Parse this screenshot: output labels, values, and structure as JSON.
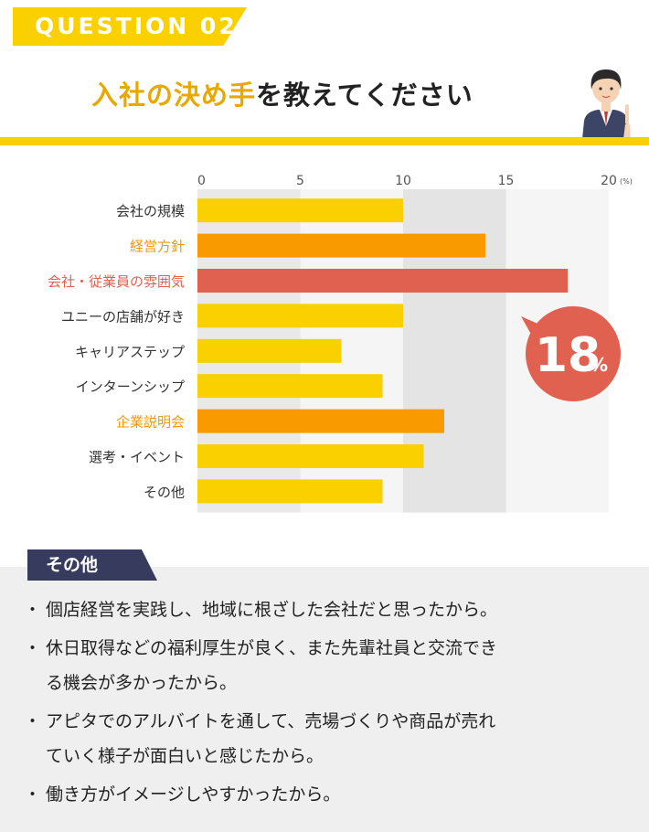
{
  "header": {
    "question_label": "QUESTION 02",
    "title_highlight": "入社の決め手",
    "title_rest": "を教えてください"
  },
  "chart_data": {
    "type": "bar",
    "orientation": "horizontal",
    "categories": [
      "会社の規模",
      "経営方針",
      "会社・従業員の雰囲気",
      "ユニーの店舗が好き",
      "キャリアステップ",
      "インターンシップ",
      "企業説明会",
      "選考・イベント",
      "その他"
    ],
    "values": [
      10,
      14,
      18,
      10,
      7,
      9,
      12,
      11,
      9
    ],
    "bar_colors": [
      "#fad000",
      "#f99a00",
      "#e06150",
      "#fad000",
      "#fad000",
      "#fad000",
      "#f99a00",
      "#fad000",
      "#fad000"
    ],
    "label_colors": [
      "#333333",
      "#f39800",
      "#e06150",
      "#333333",
      "#333333",
      "#333333",
      "#f39800",
      "#333333",
      "#333333"
    ],
    "x_ticks": [
      "0",
      "5",
      "10",
      "15",
      "20"
    ],
    "x_unit": "(%)",
    "xlim": [
      0,
      20
    ],
    "highlight": {
      "index": 2,
      "value": "18",
      "unit": "%",
      "color": "#e06150"
    }
  },
  "others": {
    "heading": "その他",
    "items": [
      {
        "lines": [
          "個店経営を実践し、地域に根ざした会社だと思ったから。"
        ]
      },
      {
        "lines": [
          "休日取得などの福利厚生が良く、また先輩社員と交流でき",
          "る機会が多かったから。"
        ]
      },
      {
        "lines": [
          "アピタでのアルバイトを通して、売場づくりや商品が売れ",
          "ていく様子が面白いと感じたから。"
        ]
      },
      {
        "lines": [
          "働き方がイメージしやすかったから。"
        ]
      }
    ]
  },
  "colors": {
    "accent_yellow": "#fad000",
    "title_yellow": "#e8a800",
    "navy": "#373c5e",
    "panel_gray": "#efefef"
  }
}
